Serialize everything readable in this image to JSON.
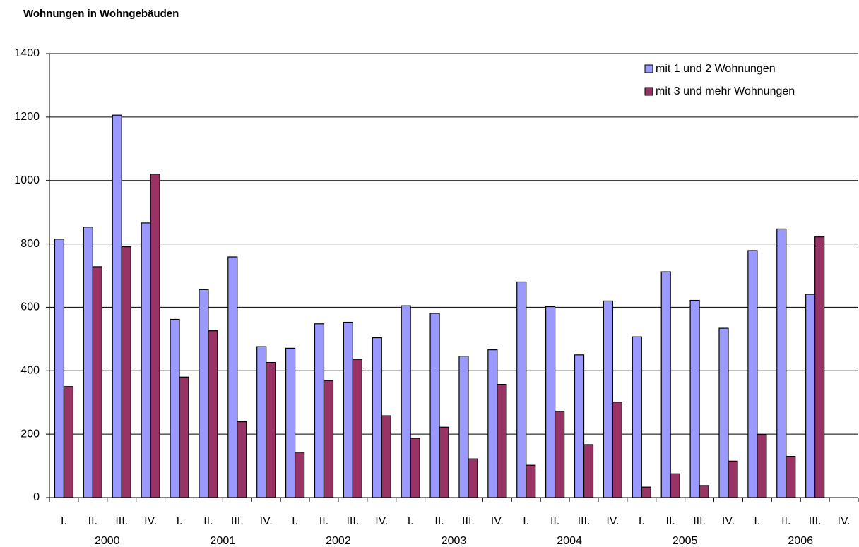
{
  "chart_data": {
    "type": "bar",
    "title": "Wohnungen in Wohngebäuden",
    "categories": [
      "I.",
      "II.",
      "III.",
      "IV.",
      "I.",
      "II.",
      "III.",
      "IV.",
      "I.",
      "II.",
      "III.",
      "IV.",
      "I.",
      "II.",
      "III.",
      "IV.",
      "I.",
      "II.",
      "III.",
      "IV.",
      "I.",
      "II.",
      "III.",
      "IV.",
      "I.",
      "II.",
      "III.",
      "IV."
    ],
    "category_groups": [
      "2000",
      "2001",
      "2002",
      "2003",
      "2004",
      "2005",
      "2006"
    ],
    "series": [
      {
        "name": "mit 1 und 2 Wohnungen",
        "color": "#9999ff",
        "values": [
          815,
          853,
          1206,
          866,
          562,
          656,
          759,
          476,
          471,
          548,
          553,
          504,
          605,
          581,
          446,
          466,
          680,
          602,
          450,
          620,
          507,
          712,
          622,
          534,
          779,
          847,
          641,
          null
        ]
      },
      {
        "name": "mit 3 und mehr Wohnungen",
        "color": "#993366",
        "values": [
          350,
          728,
          791,
          1020,
          380,
          526,
          239,
          426,
          143,
          369,
          436,
          258,
          187,
          222,
          122,
          357,
          102,
          272,
          167,
          301,
          33,
          75,
          38,
          115,
          199,
          130,
          822,
          null
        ]
      }
    ],
    "ylim": [
      0,
      1400
    ],
    "yticks": [
      0,
      200,
      400,
      600,
      800,
      1000,
      1200,
      1400
    ],
    "grid": true,
    "legend": "top-right"
  }
}
